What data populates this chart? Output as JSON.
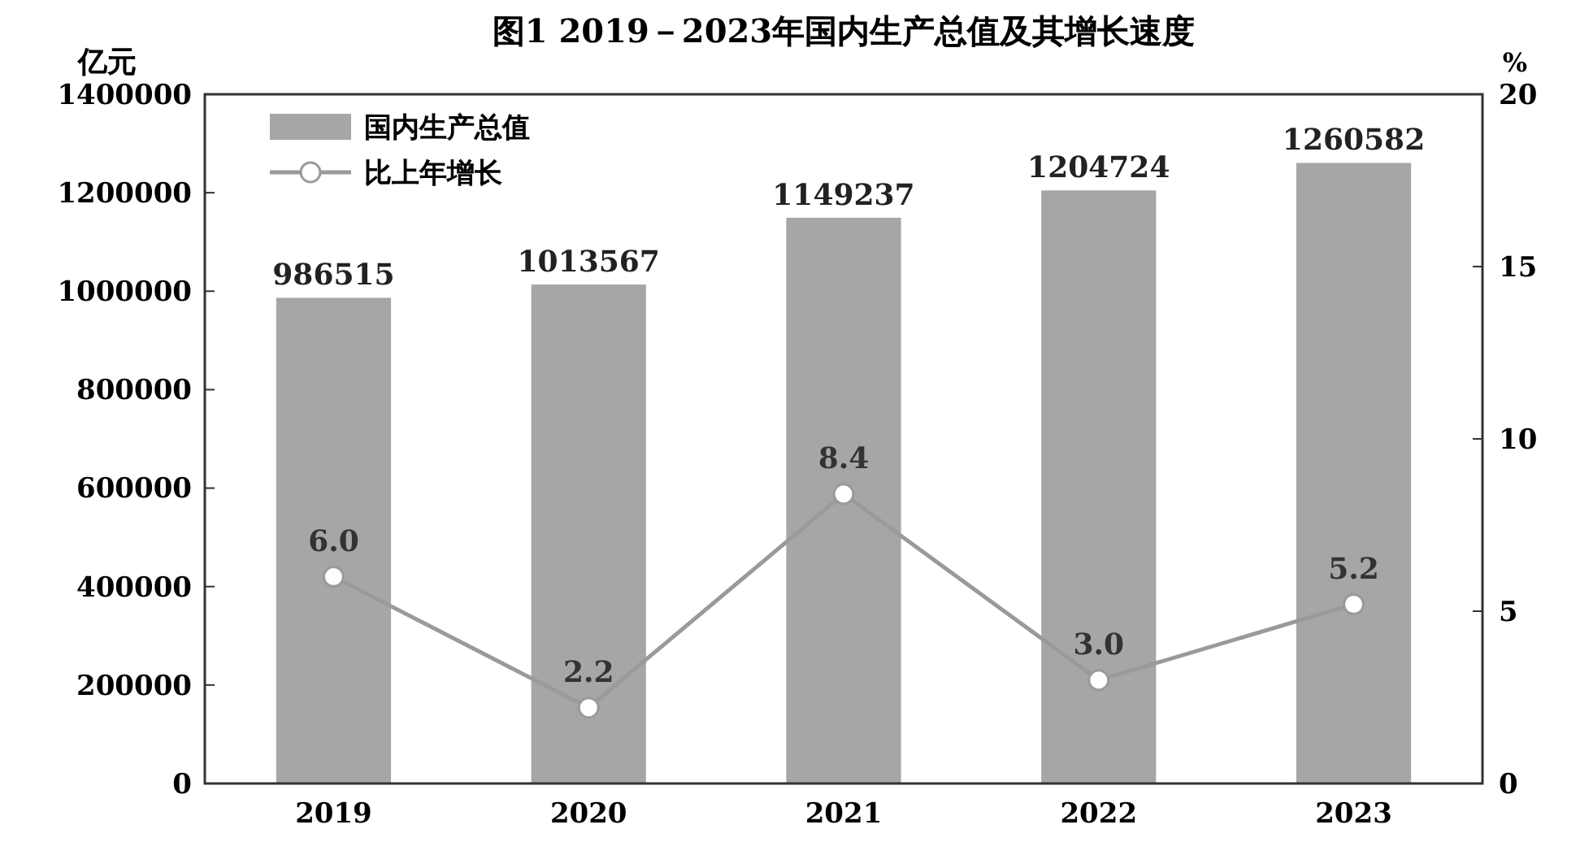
{
  "chart_data": {
    "type": "bar",
    "title": "图1 2019－2023年国内生产总值及其增长速度",
    "ylabel": "亿元",
    "y2label": "%",
    "categories": [
      "2019",
      "2020",
      "2021",
      "2022",
      "2023"
    ],
    "series": [
      {
        "name": "国内生产总值",
        "color": "#a6a6a6",
        "values": [
          986515,
          1013567,
          1149237,
          1204724,
          1260582
        ]
      },
      {
        "name": "比上年增长",
        "type": "line",
        "axis": "y2",
        "color": "#9a9a9a",
        "marker": "circle",
        "values": [
          6.0,
          2.2,
          8.4,
          3.0,
          5.2
        ],
        "value_labels": [
          "6.0",
          "2.2",
          "8.4",
          "3.0",
          "5.2"
        ]
      }
    ],
    "ylim": [
      0,
      1400000
    ],
    "yticks": [
      0,
      200000,
      400000,
      600000,
      800000,
      1000000,
      1200000,
      1400000
    ],
    "y2lim": [
      0,
      20
    ],
    "y2ticks": [
      0,
      5,
      10,
      15,
      20
    ],
    "data_labels": true,
    "legend": "top left",
    "grid": false
  }
}
